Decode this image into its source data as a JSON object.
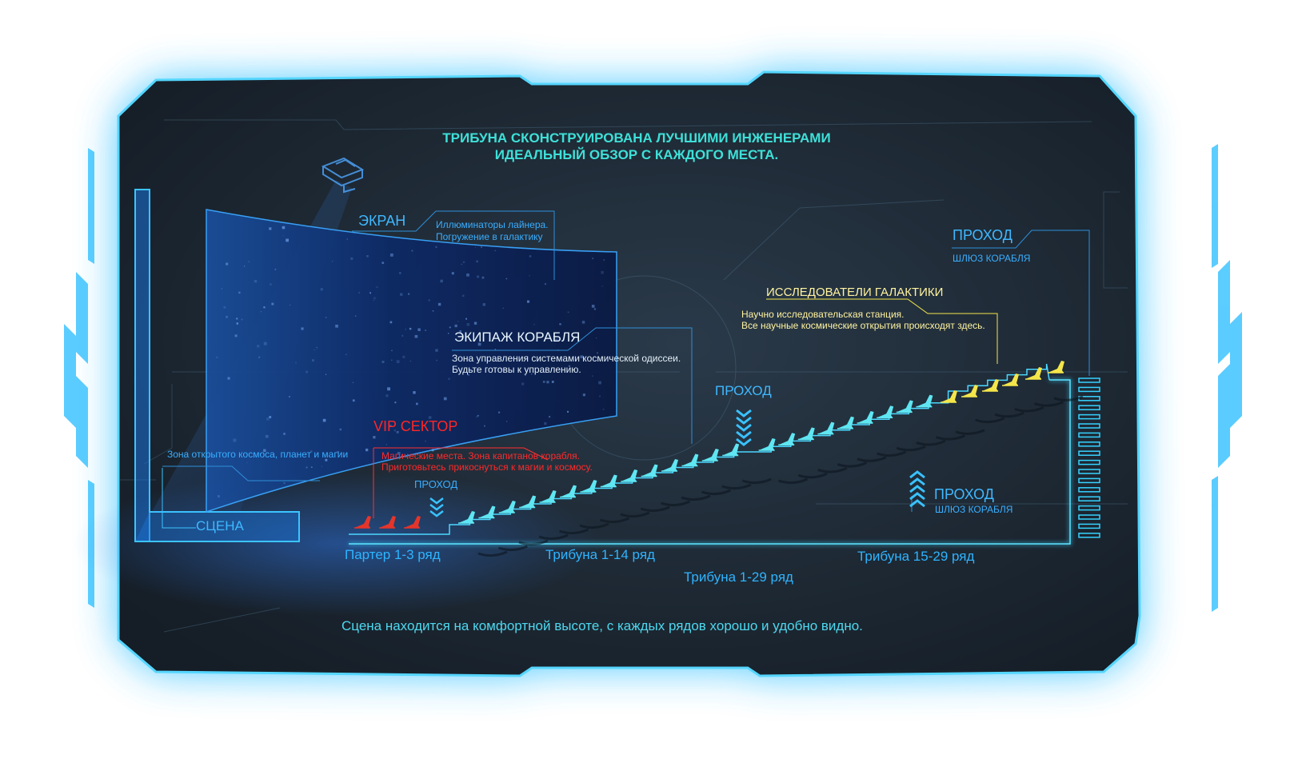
{
  "header": {
    "line1": "ТРИБУНА СКОНСТРУИРОВАНА ЛУЧШИМИ ИНЖЕНЕРАМИ",
    "line2": "ИДЕАЛЬНЫЙ ОБЗОР С КАЖДОГО МЕСТА."
  },
  "screen": {
    "title": "ЭКРАН",
    "desc1": "Иллюминаторы лайнера.",
    "desc2": "Погружение в галактику"
  },
  "crew": {
    "title": "ЭКИПАЖ КОРАБЛЯ",
    "desc1": "Зона управления системами космической одиссеи.",
    "desc2": "Будьте готовы к управлению."
  },
  "stage": {
    "desc": "Зона открытого космоса, планет и магии",
    "label": "СЦЕНА"
  },
  "vip": {
    "title": "VIP СЕКТОР",
    "desc1": "Магические места. Зона капитанов корабля.",
    "desc2": "Приготовьтесь прикоснуться к магии и космосу."
  },
  "aisles": {
    "small": "ПРОХОД",
    "center": "ПРОХОД",
    "right_title": "ПРОХОД",
    "right_sub": "ШЛЮЗ КОРАБЛЯ",
    "top_title": "ПРОХОД",
    "top_sub": "ШЛЮЗ КОРАБЛЯ"
  },
  "explorers": {
    "title": "ИССЛЕДОВАТЕЛИ ГАЛАКТИКИ",
    "desc1": "Научно исследовательская станция.",
    "desc2": "Все научные космические открытия происходят здесь."
  },
  "sections": {
    "parter": "Партер 1-3 ряд",
    "tribune_1_14": "Трибуна 1-14 ряд",
    "tribune_15_29": "Трибуна 15-29 ряд",
    "tribune_1_29": "Трибуна 1-29 ряд"
  },
  "footer": "Сцена находится на комфортной высоте, с каждых рядов хорошо и удобно видно.",
  "seats": {
    "vip_count": 3,
    "tribune_1_14_count": 14,
    "tribune_15_29_count": 15
  },
  "colors": {
    "frame_glow": "#35c8ff",
    "panel": "#1e2b36",
    "cyan": "#3ee0d8",
    "blue": "#2fb4ff",
    "vip": "#e5352b",
    "seat": "#5fe6f2",
    "explorer": "#f4e64a"
  },
  "icons": [
    "projector-icon",
    "chevron-down-icon",
    "chevron-up-icon",
    "seat-icon",
    "ladder-icon"
  ]
}
